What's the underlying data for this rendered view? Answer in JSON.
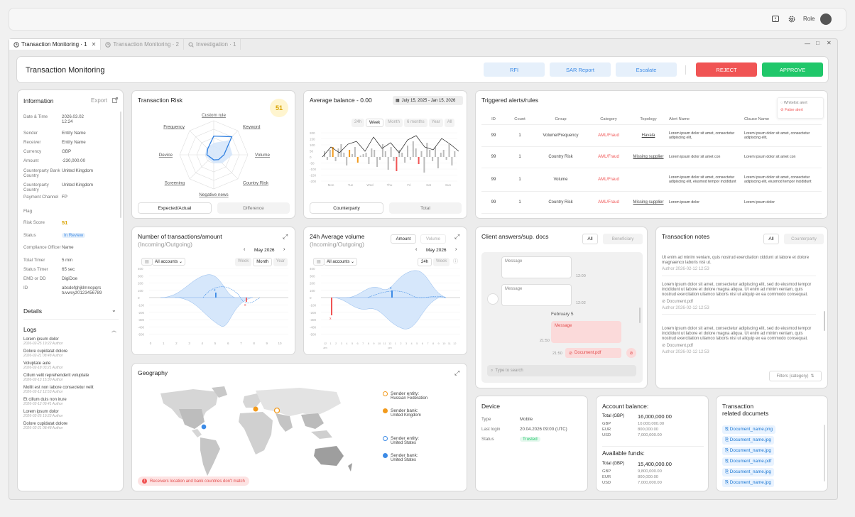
{
  "topbar": {
    "role_label": "Role"
  },
  "tabs": [
    {
      "label": "Transaction Monitoring · 1",
      "active": true
    },
    {
      "label": "Transaction Monitoring · 2"
    },
    {
      "label": "Investigation · 1"
    }
  ],
  "header": {
    "title": "Transaction Monitoring",
    "rfi": "RFI",
    "sar": "SAR Report",
    "escalate": "Escalate",
    "reject": "REJECT",
    "approve": "APPROVE"
  },
  "info": {
    "title": "Information",
    "export": "Export",
    "fields": [
      {
        "k": "Date & Time",
        "v": "2026.03.02\n12:24"
      },
      {
        "k": "Sender",
        "v": "Entity Name"
      },
      {
        "k": "Receiver",
        "v": "Entity Name"
      },
      {
        "k": "Currency",
        "v": "GBP"
      },
      {
        "k": "Amount",
        "v": "-230,000.00"
      },
      {
        "k": "Counterparty Bank Country",
        "v": "United Kingdom"
      },
      {
        "k": "Counterparty Country",
        "v": "United Kingdom"
      },
      {
        "k": "Payment Channel",
        "v": "FP"
      },
      {
        "k": "Flag",
        "v": ""
      },
      {
        "k": "Risk Score",
        "v": "51"
      },
      {
        "k": "Status",
        "v": "In Review"
      },
      {
        "k": "Compliance Officer",
        "v": "Name"
      },
      {
        "k": "Total Timer",
        "v": "5 min"
      },
      {
        "k": "Status Timer",
        "v": "65 sec"
      },
      {
        "k": "EMD or DD",
        "v": "DigiDoe"
      },
      {
        "k": "ID",
        "v": "abcdefghjklmnopqrs\ntuvwxyz0123456789"
      }
    ],
    "details": "Details",
    "logs": "Logs",
    "log_items": [
      {
        "t": "Lorem ipsum dolor",
        "m": "2026-02-25 19:22  Author"
      },
      {
        "t": "Dolore cupidatat dolore",
        "m": "2026-02-21 08:48  Author"
      },
      {
        "t": "Voluptate aute",
        "m": "2026-02-18 03:21  Author"
      },
      {
        "t": "Cillum velit reprehenderit voluptate",
        "m": "2026-02-13 15:30  Author"
      },
      {
        "t": "Mollit est non labore consectetur velit",
        "m": "2026-02-12 12:53  Author"
      },
      {
        "t": "Et cillum duis non irure",
        "m": "2026-02-12 09:41  Author"
      },
      {
        "t": "Lorem ipsum dolor",
        "m": "2026-02-25 19:22  Author"
      },
      {
        "t": "Dolore cupidatat dolore",
        "m": "2026-02-21 08:48  Author"
      }
    ]
  },
  "risk": {
    "title": "Transaction Risk",
    "score": "51",
    "axes": [
      "Custom rule",
      "Keyword",
      "Volume",
      "Country Risk",
      "Negative news",
      "Screening",
      "Device",
      "Frequency"
    ],
    "expected": "Expected/Actual",
    "difference": "Difference"
  },
  "balance": {
    "title": "Average balance - 0.00",
    "range": "July 15, 2025 - Jan 15, 2026",
    "periods": [
      "24h",
      "Week",
      "Month",
      "6 months",
      "Year",
      "All"
    ],
    "active_period": "Week",
    "days": [
      "Mon",
      "Tue",
      "Wed",
      "Thu",
      "Fri",
      "Sat",
      "Sun"
    ],
    "yticks": [
      "200",
      "150",
      "100",
      "50",
      "0",
      "-50",
      "-100",
      "-150",
      "-200"
    ],
    "counterparty": "Counterparty",
    "total": "Total"
  },
  "alerts": {
    "title": "Triggered alerts/rules",
    "whitelist": "Whitelist alert",
    "false_alert": "False alert",
    "columns": [
      "ID",
      "Count",
      "Group",
      "Category",
      "Topology",
      "Alert Name",
      "Clause Name"
    ],
    "rows": [
      [
        "99",
        "1",
        "Volume/Frequency",
        "AML/Fraud",
        "Havala",
        "Lorem ipsum dolor sit amet, consectetur adipiscing elit,",
        "Lorem ipsum dolor sit amet, consectetur adipiscing elit,"
      ],
      [
        "99",
        "1",
        "Country Risk",
        "AML/Fraud",
        "Missing supplier",
        "Lorem ipsum dolor sit amet con",
        "Lorem ipsum dolor sit amet con"
      ],
      [
        "99",
        "1",
        "Volume",
        "AML/Fraud",
        "",
        "Lorem ipsum dolor sit amet, consectetur adipiscing elit, eiusmod tempor incididunt",
        "Lorem ipsum dolor sit amet, consectetur adipiscing elit, eiusmod tempor incididunt"
      ],
      [
        "99",
        "1",
        "Country Risk",
        "AML/Fraud",
        "Missing supplier",
        "Lorem ipsum dolor",
        "Lorem ipsum dolor"
      ]
    ]
  },
  "numtx": {
    "title": "Number of transactions/amount",
    "subtitle": "(Incoming/Outgoing)",
    "month": "May 2026",
    "accounts": "All accounts",
    "periods": [
      "Week",
      "Month",
      "Year"
    ],
    "active_period": "Month",
    "yticks": [
      "400",
      "300",
      "200",
      "100",
      "0",
      "-100",
      "-200",
      "-300",
      "-400",
      "-500"
    ],
    "xticks": [
      "0",
      "1",
      "2",
      "3",
      "4",
      "5",
      "6",
      "7",
      "8",
      "9",
      "10"
    ]
  },
  "vol": {
    "title": "24h Average volume",
    "subtitle": "(Incoming/Outgoing)",
    "amount": "Amount",
    "volume": "Volume",
    "month": "May 2026",
    "accounts": "All accounts",
    "periods": [
      "24h",
      "Week"
    ],
    "active_period": "24h",
    "yticks": [
      "400",
      "300",
      "200",
      "100",
      "0",
      "-100",
      "-200",
      "-300",
      "-400",
      "-500"
    ],
    "xticks": [
      "12",
      "1",
      "2",
      "3",
      "4",
      "5",
      "6",
      "7",
      "8",
      "9",
      "10",
      "11",
      "12",
      "1",
      "2",
      "3",
      "4",
      "5",
      "6",
      "7",
      "8",
      "9",
      "10",
      "11",
      "12"
    ],
    "am": "am",
    "pm": "pm"
  },
  "answers": {
    "title": "Client answers/sup. docs",
    "all": "All",
    "beneficiary": "Beneficiary",
    "msg": "Message",
    "t1": "12:00",
    "t2": "12:02",
    "date": "February 5",
    "t3": "21:50",
    "t4": "21:50",
    "pdf": "Document.pdf",
    "search": "Type to search"
  },
  "notes": {
    "title": "Transaction notes",
    "all": "All",
    "counterparty": "Counterparty",
    "items": [
      {
        "text": "Ut enim ad minim veniam, quis nostrud exercitation ciddunt ut labore et dolore magnaenco laboris nisi ut.",
        "doc": "",
        "meta": "Author    2026-02-12 12:53"
      },
      {
        "text": "Lorem ipsum dolor sit amet, consectetur adipiscing elit, sed do eiusmod tempor incididunt ut labore et dolore magna aliqua. Ut enim ad minim veniam, quis nostrud exercitation ullamco laboris nisi ut aliquip ex ea commodo consequat.",
        "doc": "Document.pdf",
        "meta": "Author    2026-02-12 12:53"
      },
      {
        "text": "Lorem ipsum dolor sit amet, consectetur adipiscing elit, sed do eiusmod tempor incididunt ut labore et dolore magna aliqua. Ut enim ad minim veniam, quis nostrud exercitation ullamco laboris nisi ut aliquip ex ea commodo consequat.",
        "doc": "Document.pdf",
        "meta": "Author    2026-02-12 12:53"
      }
    ],
    "filters": "Filters (category)"
  },
  "geo": {
    "title": "Geography",
    "legend": [
      {
        "label": "Sender entity:",
        "value": "Russian Federation",
        "color": "#f29a1c",
        "filled": false
      },
      {
        "label": "Sender bank:",
        "value": "United Kingdom",
        "color": "#f29a1c",
        "filled": true
      },
      {
        "label": "Sender entity:",
        "value": "United States",
        "color": "#3d8be6",
        "filled": false
      },
      {
        "label": "Sender bank:",
        "value": "United States",
        "color": "#3d8be6",
        "filled": true
      }
    ],
    "warning": "Receivers location and bank countries don't match"
  },
  "device": {
    "title": "Device",
    "rows": [
      {
        "k": "Type",
        "v": "Mobile"
      },
      {
        "k": "Last login",
        "v": "20.04.2026 09:00 (UTC)"
      },
      {
        "k": "Status",
        "v": "Trusted"
      }
    ]
  },
  "account": {
    "title": "Account balance:",
    "total_k": "Total (GBP)",
    "total_v": "16,000,000.00",
    "rows": [
      {
        "k": "GBP",
        "v": "10,000,000.00"
      },
      {
        "k": "EUR",
        "v": "800,000.00"
      },
      {
        "k": "USD",
        "v": "7,000,000.00"
      }
    ],
    "avail_title": "Available  funds:",
    "avail_total_v": "15,400,000.00",
    "avail_rows": [
      {
        "k": "GBP",
        "v": "9,800,000.00"
      },
      {
        "k": "EUR",
        "v": "800,000.00"
      },
      {
        "k": "USD",
        "v": "7,000,000.00"
      }
    ]
  },
  "docs": {
    "title": "Transaction\nrelated documets",
    "items": [
      "Document_name.png",
      "Document_name.jpg",
      "Document_name.jpg",
      "Document_name.pdf",
      "Document_name.jpg",
      "Document_name.jpg"
    ]
  },
  "colors": {
    "accent": "#3d8be6",
    "danger": "#f05454",
    "success": "#20c76a",
    "orange": "#f29a1c"
  }
}
